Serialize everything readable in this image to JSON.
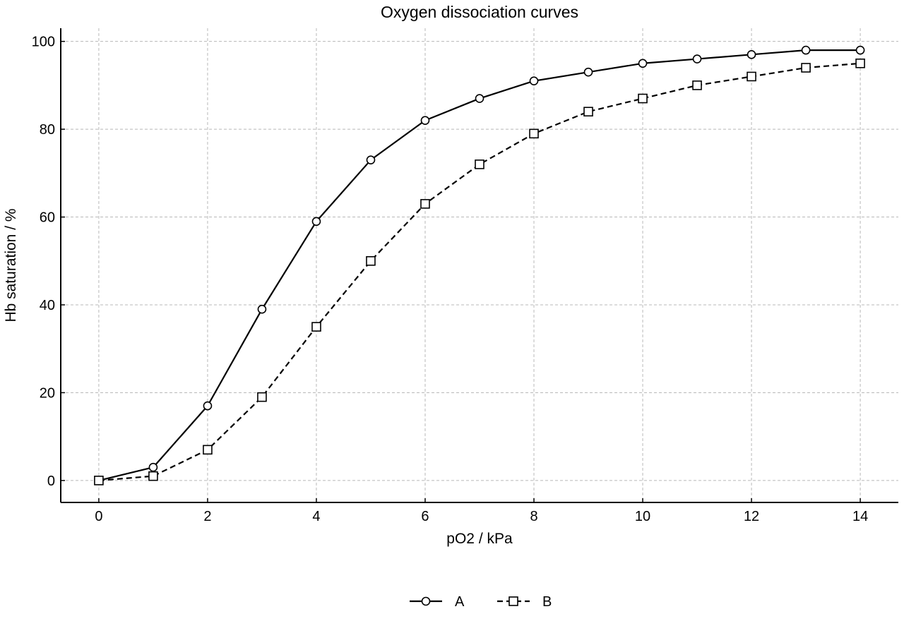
{
  "chart_data": {
    "type": "line",
    "title": "Oxygen dissociation curves",
    "xlabel": "pO2 / kPa",
    "ylabel": "Hb saturation / %",
    "xlim": [
      -0.7,
      14.7
    ],
    "ylim": [
      -5,
      103
    ],
    "xticks": [
      0,
      2,
      4,
      6,
      8,
      10,
      12,
      14
    ],
    "yticks": [
      0,
      20,
      40,
      60,
      80,
      100
    ],
    "grid": true,
    "legend_position": "bottom-center",
    "x": [
      0,
      1,
      2,
      3,
      4,
      5,
      6,
      7,
      8,
      9,
      10,
      11,
      12,
      13,
      14
    ],
    "series": [
      {
        "name": "A",
        "marker": "circle",
        "line_style": "solid",
        "color": "#000000",
        "values": [
          0,
          3,
          17,
          39,
          59,
          73,
          82,
          87,
          91,
          93,
          95,
          96,
          97,
          98,
          98
        ]
      },
      {
        "name": "B",
        "marker": "square",
        "line_style": "dashed",
        "color": "#000000",
        "values": [
          0,
          1,
          7,
          19,
          35,
          50,
          63,
          72,
          79,
          84,
          87,
          90,
          92,
          94,
          95
        ]
      }
    ]
  }
}
